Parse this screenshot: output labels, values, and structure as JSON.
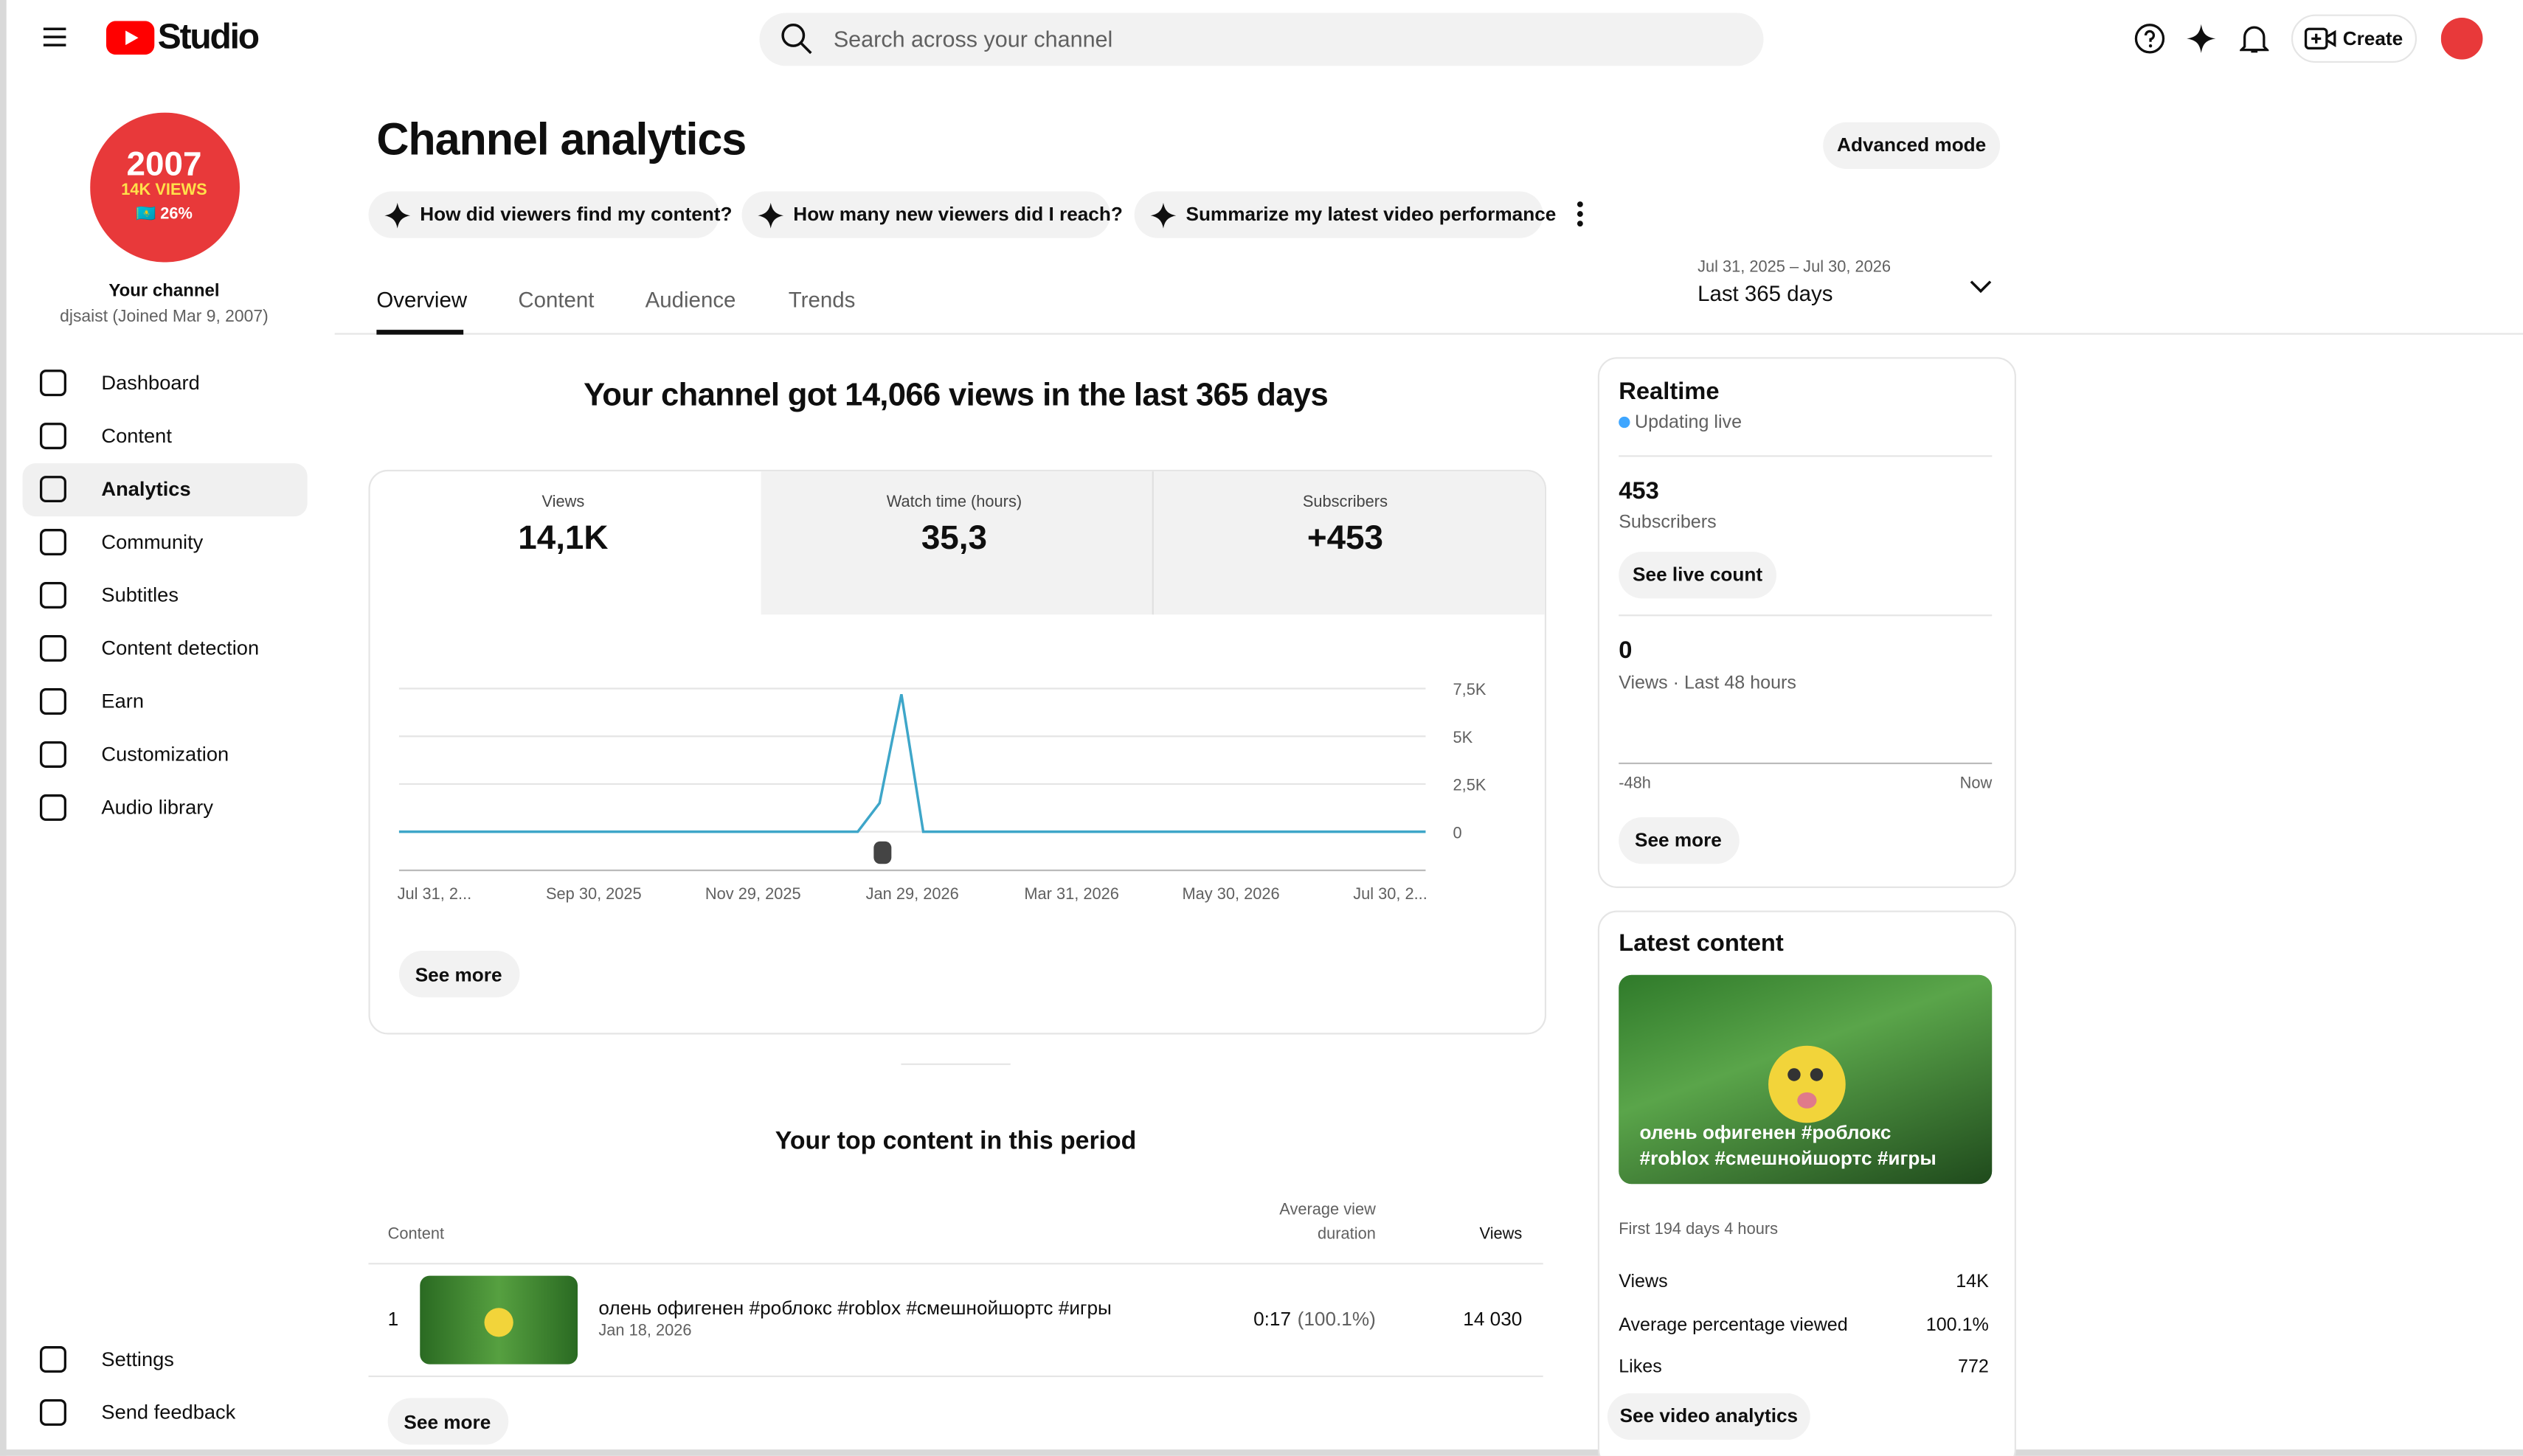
{
  "header": {
    "logo": "Studio",
    "search_placeholder": "Search across your channel",
    "create": "Create"
  },
  "sidebar": {
    "avatar_lines": [
      "2007",
      "14K VIEWS",
      "🇰🇿 26%"
    ],
    "channel_label": "Your channel",
    "channel_sub": "djsaist (Joined Mar 9, 2007)",
    "nav": [
      "Dashboard",
      "Content",
      "Analytics",
      "Community",
      "Subtitles",
      "Content detection",
      "Earn",
      "Customization",
      "Audio library"
    ],
    "bottom_nav": [
      "Settings",
      "Send feedback"
    ]
  },
  "main": {
    "title": "Channel analytics",
    "advanced": "Advanced mode",
    "prompts": [
      "How did viewers find my content?",
      "How many new viewers did I reach?",
      "Summarize my latest video performance"
    ],
    "tabs": [
      "Overview",
      "Content",
      "Audience",
      "Trends"
    ],
    "date_range": "Jul 31, 2025 – Jul 30, 2026",
    "period": "Last 365 days",
    "headline": "Your channel got 14,066 views in the last 365 days",
    "metrics": [
      {
        "label": "Views",
        "value": "14,1K"
      },
      {
        "label": "Watch time (hours)",
        "value": "35,3"
      },
      {
        "label": "Subscribers",
        "value": "+453"
      }
    ],
    "chart": {
      "type": "line",
      "color": "#3ea6c9",
      "values": [
        0,
        0,
        0,
        0,
        0,
        0,
        0,
        0,
        0,
        0,
        0,
        0,
        0,
        0,
        0,
        0,
        0,
        0,
        0,
        0,
        0,
        0,
        1500,
        7200,
        0,
        0,
        0,
        0,
        0,
        0,
        0,
        0,
        0,
        0,
        0,
        0,
        0,
        0,
        0,
        0,
        0,
        0,
        0,
        0,
        0,
        0,
        0,
        0
      ],
      "ylim": [
        0,
        7500
      ],
      "yticks": [
        0,
        {
          "value": 2500,
          "label": "2,5K"
        },
        {
          "value": 5000,
          "label": "5K"
        },
        {
          "value": 7500,
          "label": "7,5K"
        }
      ],
      "xticks": [
        "Jul 31, 2...",
        "Sep 30, 2025",
        "Nov 29, 2025",
        "Jan 29, 2026",
        "Mar 31, 2026",
        "May 30, 2026",
        "Jul 30, 2..."
      ],
      "grid": true
    },
    "see_more": "See more",
    "top_title": "Your top content in this period",
    "table": {
      "headers": [
        "Content",
        "Average view",
        "duration",
        "Views"
      ],
      "rows": [
        {
          "rank": "1",
          "title": "олень офигенен #роблокс #roblox #смешнойшортс #игры",
          "date": "Jan 18, 2026",
          "duration": "0:17",
          "percent": "(100.1%)",
          "views": "14 030"
        }
      ]
    },
    "table_more": "See more"
  },
  "realtime": {
    "title": "Realtime",
    "status": "Updating live",
    "subscribers": "453",
    "subscribers_label": "Subscribers",
    "live_button": "See live count",
    "views": "0",
    "views_label": "Views · Last 48 hours",
    "axis_start": "-48h",
    "axis_end": "Now",
    "see_more": "See more"
  },
  "latest": {
    "title": "Latest content",
    "video_title": "олень офигенен #роблокс #roblox #смешнойшортс #игры",
    "period": "First 194 days 4 hours",
    "stats": [
      {
        "label": "Views",
        "value": "14K"
      },
      {
        "label": "Average percentage viewed",
        "value": "100.1%"
      },
      {
        "label": "Likes",
        "value": "772"
      }
    ],
    "button": "See video analytics"
  }
}
